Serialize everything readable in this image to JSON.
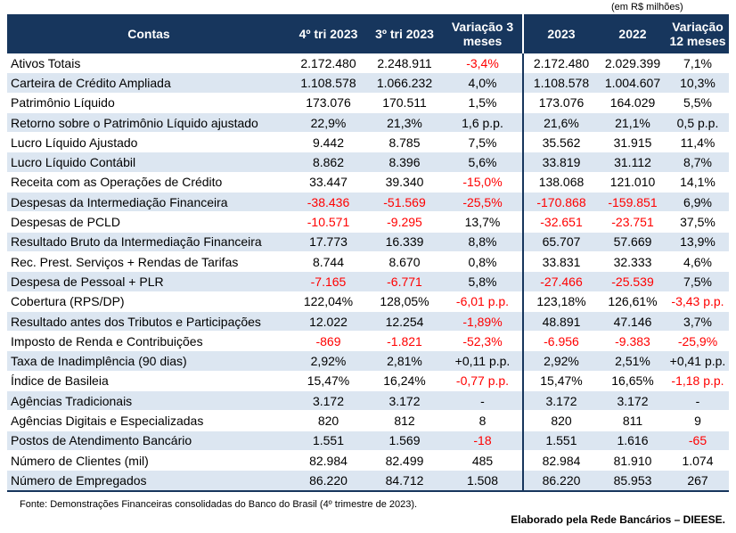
{
  "unit_note": "(em R$ milhões)",
  "headers": [
    "Contas",
    "4º tri 2023",
    "3º tri 2023",
    "Variação 3 meses",
    "2023",
    "2022",
    "Variação 12 meses"
  ],
  "rows": [
    {
      "label": "Ativos Totais",
      "values": [
        "2.172.480",
        "2.248.911",
        "-3,4%",
        "2.172.480",
        "2.029.399",
        "7,1%"
      ]
    },
    {
      "label": "Carteira de Crédito Ampliada",
      "values": [
        "1.108.578",
        "1.066.232",
        "4,0%",
        "1.108.578",
        "1.004.607",
        "10,3%"
      ]
    },
    {
      "label": "Patrimônio Líquido",
      "values": [
        "173.076",
        "170.511",
        "1,5%",
        "173.076",
        "164.029",
        "5,5%"
      ]
    },
    {
      "label": "Retorno sobre o Patrimônio Líquido ajustado",
      "values": [
        "22,9%",
        "21,3%",
        "1,6 p.p.",
        "21,6%",
        "21,1%",
        "0,5 p.p."
      ]
    },
    {
      "label": "Lucro Líquido Ajustado",
      "values": [
        "9.442",
        "8.785",
        "7,5%",
        "35.562",
        "31.915",
        "11,4%"
      ]
    },
    {
      "label": "Lucro Líquido Contábil",
      "values": [
        "8.862",
        "8.396",
        "5,6%",
        "33.819",
        "31.112",
        "8,7%"
      ]
    },
    {
      "label": "Receita com as Operações de Crédito",
      "values": [
        "33.447",
        "39.340",
        "-15,0%",
        "138.068",
        "121.010",
        "14,1%"
      ]
    },
    {
      "label": "Despesas da Intermediação Financeira",
      "values": [
        "-38.436",
        "-51.569",
        "-25,5%",
        "-170.868",
        "-159.851",
        "6,9%"
      ]
    },
    {
      "label": "Despesas de PCLD",
      "values": [
        "-10.571",
        "-9.295",
        "13,7%",
        "-32.651",
        "-23.751",
        "37,5%"
      ]
    },
    {
      "label": "Resultado Bruto da Intermediação Financeira",
      "values": [
        "17.773",
        "16.339",
        "8,8%",
        "65.707",
        "57.669",
        "13,9%"
      ]
    },
    {
      "label": "Rec. Prest. Serviços + Rendas de Tarifas",
      "values": [
        "8.744",
        "8.670",
        "0,8%",
        "33.831",
        "32.333",
        "4,6%"
      ]
    },
    {
      "label": "Despesa de Pessoal + PLR",
      "values": [
        "-7.165",
        "-6.771",
        "5,8%",
        "-27.466",
        "-25.539",
        "7,5%"
      ]
    },
    {
      "label": "Cobertura (RPS/DP)",
      "values": [
        "122,04%",
        "128,05%",
        "-6,01 p.p.",
        "123,18%",
        "126,61%",
        "-3,43 p.p."
      ]
    },
    {
      "label": "Resultado antes dos Tributos e Participações",
      "values": [
        "12.022",
        "12.254",
        "-1,89%",
        "48.891",
        "47.146",
        "3,7%"
      ]
    },
    {
      "label": "Imposto de Renda e Contribuições",
      "values": [
        "-869",
        "-1.821",
        "-52,3%",
        "-6.956",
        "-9.383",
        "-25,9%"
      ]
    },
    {
      "label": "Taxa de Inadimplência (90 dias)",
      "values": [
        "2,92%",
        "2,81%",
        "+0,11 p.p.",
        "2,92%",
        "2,51%",
        "+0,41 p.p."
      ]
    },
    {
      "label": "Índice de Basileia",
      "values": [
        "15,47%",
        "16,24%",
        "-0,77 p.p.",
        "15,47%",
        "16,65%",
        "-1,18 p.p."
      ]
    },
    {
      "label": "Agências Tradicionais",
      "values": [
        "3.172",
        "3.172",
        "-",
        "3.172",
        "3.172",
        "-"
      ]
    },
    {
      "label": "Agências Digitais e Especializadas",
      "values": [
        "820",
        "812",
        "8",
        "820",
        "811",
        "9"
      ]
    },
    {
      "label": "Postos de Atendimento Bancário",
      "values": [
        "1.551",
        "1.569",
        "-18",
        "1.551",
        "1.616",
        "-65"
      ]
    },
    {
      "label": "Número de Clientes (mil)",
      "values": [
        "82.984",
        "82.499",
        "485",
        "82.984",
        "81.910",
        "1.074"
      ]
    },
    {
      "label": "Número de Empregados",
      "values": [
        "86.220",
        "84.712",
        "1.508",
        "86.220",
        "85.953",
        "267"
      ]
    }
  ],
  "source": "Fonte: Demonstrações Financeiras consolidadas do Banco do Brasil (4º trimestre de 2023).",
  "credit": "Elaborado pela Rede Bancários – DIEESE.",
  "colors": {
    "header_bg": "#17365d",
    "stripe": "#dce6f1",
    "negative": "#ff0000"
  }
}
